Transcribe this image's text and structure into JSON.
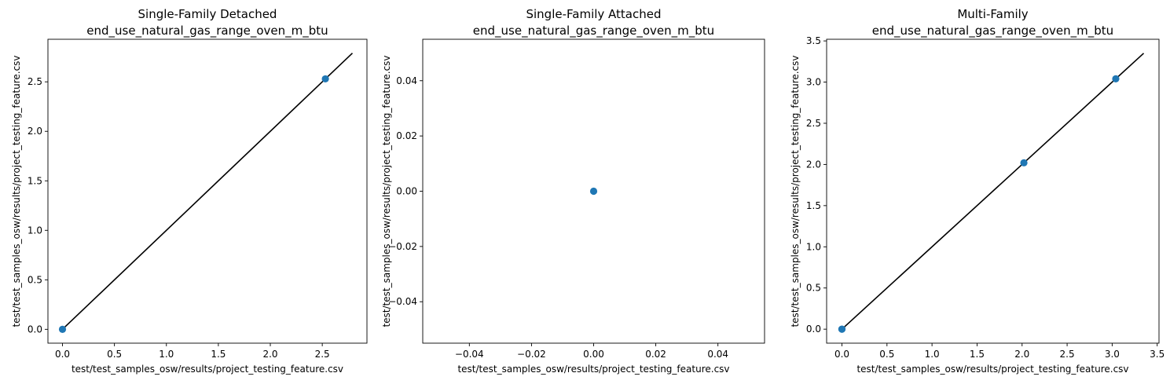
{
  "chart_data": [
    {
      "type": "scatter",
      "title_line1": "Single-Family Detached",
      "title_line2": "end_use_natural_gas_range_oven_m_btu",
      "xlabel": "test/test_samples_osw/results/project_testing_feature.csv",
      "ylabel": "test/test_samples_osw/results/project_testing_feature.csv",
      "xlim": [
        -0.14,
        2.93
      ],
      "ylim": [
        -0.14,
        2.93
      ],
      "xticks": [
        "0.0",
        "0.5",
        "1.0",
        "1.5",
        "2.0",
        "2.5"
      ],
      "yticks": [
        "0.0",
        "0.5",
        "1.0",
        "1.5",
        "2.0",
        "2.5"
      ],
      "tick_values": [
        0,
        0.5,
        1.0,
        1.5,
        2.0,
        2.5
      ],
      "points": [
        {
          "x": 0,
          "y": 0
        },
        {
          "x": 2.53,
          "y": 2.53
        }
      ],
      "line": [
        [
          0,
          0
        ],
        [
          2.79,
          2.79
        ]
      ],
      "grid": false
    },
    {
      "type": "scatter",
      "title_line1": "Single-Family Attached",
      "title_line2": "end_use_natural_gas_range_oven_m_btu",
      "xlabel": "test/test_samples_osw/results/project_testing_feature.csv",
      "ylabel": "test/test_samples_osw/results/project_testing_feature.csv",
      "xlim": [
        -0.055,
        0.055
      ],
      "ylim": [
        -0.055,
        0.055
      ],
      "xticks": [
        "−0.04",
        "−0.02",
        "0.00",
        "0.02",
        "0.04"
      ],
      "yticks": [
        "−0.04",
        "−0.02",
        "0.00",
        "0.02",
        "0.04"
      ],
      "tick_values": [
        -0.04,
        -0.02,
        0,
        0.02,
        0.04
      ],
      "points": [
        {
          "x": 0,
          "y": 0
        }
      ],
      "line": [],
      "grid": false
    },
    {
      "type": "scatter",
      "title_line1": "Multi-Family",
      "title_line2": "end_use_natural_gas_range_oven_m_btu",
      "xlabel": "test/test_samples_osw/results/project_testing_feature.csv",
      "ylabel": "test/test_samples_osw/results/project_testing_feature.csv",
      "xlim": [
        -0.17,
        3.52
      ],
      "ylim": [
        -0.17,
        3.52
      ],
      "xticks": [
        "0.0",
        "0.5",
        "1.0",
        "1.5",
        "2.0",
        "2.5",
        "3.0",
        "3.5"
      ],
      "yticks": [
        "0.0",
        "0.5",
        "1.0",
        "1.5",
        "2.0",
        "2.5",
        "3.0",
        "3.5"
      ],
      "tick_values": [
        0,
        0.5,
        1.0,
        1.5,
        2.0,
        2.5,
        3.0,
        3.5
      ],
      "points": [
        {
          "x": 0,
          "y": 0
        },
        {
          "x": 0,
          "y": 0
        },
        {
          "x": 2.02,
          "y": 2.02
        },
        {
          "x": 3.04,
          "y": 3.04
        }
      ],
      "line": [
        [
          0,
          0
        ],
        [
          3.35,
          3.35
        ]
      ],
      "grid": false
    }
  ],
  "colors": {
    "marker": "#1f77b4",
    "line": "#000000",
    "axes": "#000000"
  }
}
